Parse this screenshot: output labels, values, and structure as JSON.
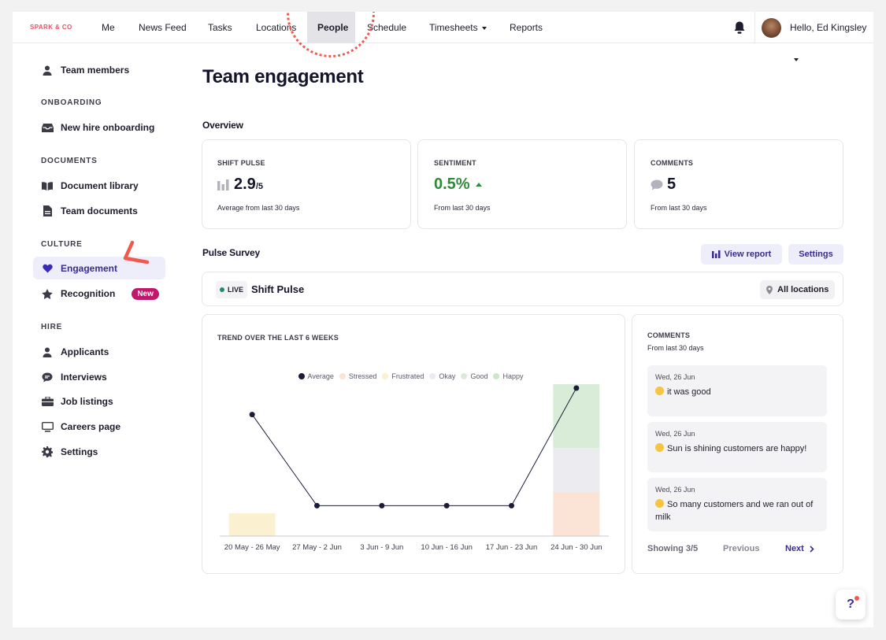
{
  "brand": "SPARK & CO",
  "nav": {
    "items": [
      "Me",
      "News Feed",
      "Tasks",
      "Locations",
      "People",
      "Schedule",
      "Timesheets",
      "Reports"
    ],
    "active": "People",
    "greeting": "Hello, Ed Kingsley"
  },
  "sidebar": {
    "team_members": "Team members",
    "onboarding_head": "ONBOARDING",
    "new_hire": "New hire onboarding",
    "documents_head": "DOCUMENTS",
    "doc_library": "Document library",
    "team_docs": "Team documents",
    "culture_head": "CULTURE",
    "engagement": "Engagement",
    "recognition": "Recognition",
    "new_badge": "New",
    "hire_head": "HIRE",
    "applicants": "Applicants",
    "interviews": "Interviews",
    "job_listings": "Job listings",
    "careers": "Careers page",
    "settings": "Settings"
  },
  "page": {
    "title": "Team engagement",
    "overview": "Overview",
    "pulse_survey": "Pulse Survey"
  },
  "overview": {
    "shift_pulse": {
      "label": "SHIFT PULSE",
      "value": "2.9",
      "suffix": "/5",
      "note": "Average from last 30 days"
    },
    "sentiment": {
      "label": "SENTIMENT",
      "value": "0.5%",
      "note": "From last 30 days",
      "color": "#2e8b3a"
    },
    "comments": {
      "label": "COMMENTS",
      "value": "5",
      "note": "From last 30 days"
    }
  },
  "pulse": {
    "view_report": "View report",
    "settings": "Settings",
    "live": "LIVE",
    "name": "Shift Pulse",
    "locations": "All locations"
  },
  "chart_data": {
    "type": "line",
    "title": "TREND OVER THE LAST 6 WEEKS",
    "categories": [
      "20 May - 26 May",
      "27 May - 2 Jun",
      "3 Jun - 9 Jun",
      "10 Jun - 16 Jun",
      "17 Jun - 23 Jun",
      "24 Jun - 30 Jun"
    ],
    "ylim": [
      0,
      5
    ],
    "series": [
      {
        "name": "Average",
        "values": [
          4,
          1,
          1,
          1,
          1,
          5
        ],
        "color": "#1d1b3a"
      }
    ],
    "stacked_bars": [
      {
        "name": "Stressed",
        "color": "#fbe3d6",
        "values": [
          0,
          0,
          0,
          0,
          0,
          0.29
        ]
      },
      {
        "name": "Frustrated",
        "color": "#fbf0cf",
        "values": [
          0.15,
          0,
          0,
          0,
          0,
          0
        ]
      },
      {
        "name": "Okay",
        "color": "#ecebf0",
        "values": [
          0,
          0,
          0,
          0,
          0,
          0.29
        ]
      },
      {
        "name": "Good",
        "color": "#d9ecd8",
        "values": [
          0,
          0,
          0,
          0,
          0,
          0.42
        ]
      },
      {
        "name": "Happy",
        "color": "#c8e8c8",
        "values": [
          0,
          0,
          0,
          0,
          0,
          0
        ]
      }
    ],
    "legend_position": "top"
  },
  "comments": {
    "title": "COMMENTS",
    "subtitle": "From last 30 days",
    "items": [
      {
        "date": "Wed, 26 Jun",
        "text": "it was good"
      },
      {
        "date": "Wed, 26 Jun",
        "text": "Sun is shining customers are happy!"
      },
      {
        "date": "Wed, 26 Jun",
        "text": "So many customers and we ran out of milk"
      }
    ],
    "showing": "Showing 3/5",
    "previous": "Previous",
    "next": "Next"
  },
  "help": "?"
}
